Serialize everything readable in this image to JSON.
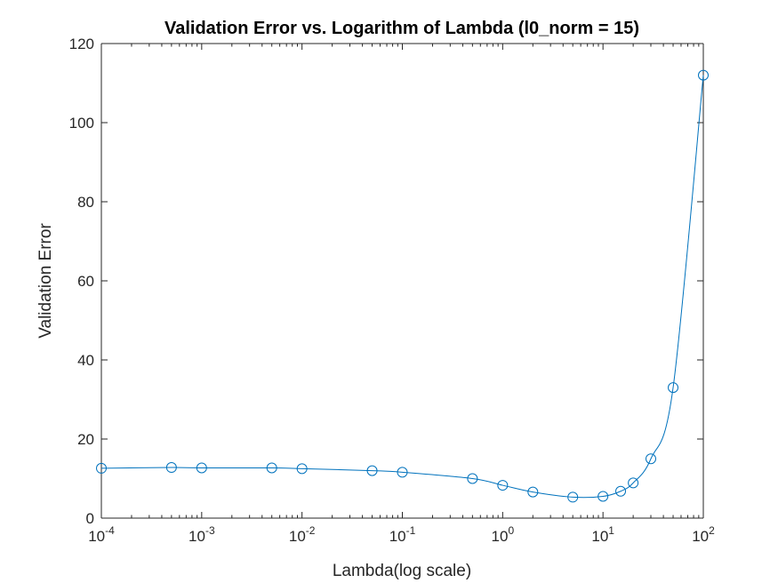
{
  "chart_data": {
    "type": "line",
    "title": "Validation Error vs. Logarithm of Lambda (l0_norm = 15)",
    "xlabel": "Lambda(log scale)",
    "ylabel": "Validation Error",
    "x_scale": "log",
    "xlim": [
      0.0001,
      100
    ],
    "ylim": [
      0,
      120
    ],
    "x_ticks": [
      {
        "value": 0.0001,
        "base": "10",
        "exp": "-4"
      },
      {
        "value": 0.001,
        "base": "10",
        "exp": "-3"
      },
      {
        "value": 0.01,
        "base": "10",
        "exp": "-2"
      },
      {
        "value": 0.1,
        "base": "10",
        "exp": "-1"
      },
      {
        "value": 1,
        "base": "10",
        "exp": "0"
      },
      {
        "value": 10,
        "base": "10",
        "exp": "1"
      },
      {
        "value": 100,
        "base": "10",
        "exp": "2"
      }
    ],
    "y_ticks": [
      0,
      20,
      40,
      60,
      80,
      100,
      120
    ],
    "grid": false,
    "legend": "none",
    "color": "#0072BD",
    "marker": "circle",
    "series": [
      {
        "x": [
          0.0001,
          0.0005,
          0.001,
          0.005,
          0.01,
          0.05,
          0.1,
          0.5,
          1,
          2,
          5,
          10,
          15,
          20,
          30,
          50,
          100
        ],
        "y": [
          12.6,
          12.8,
          12.7,
          12.7,
          12.5,
          12.0,
          11.6,
          10.0,
          8.3,
          6.6,
          5.3,
          5.5,
          6.8,
          8.9,
          15.0,
          33.0,
          112.0
        ]
      }
    ]
  }
}
